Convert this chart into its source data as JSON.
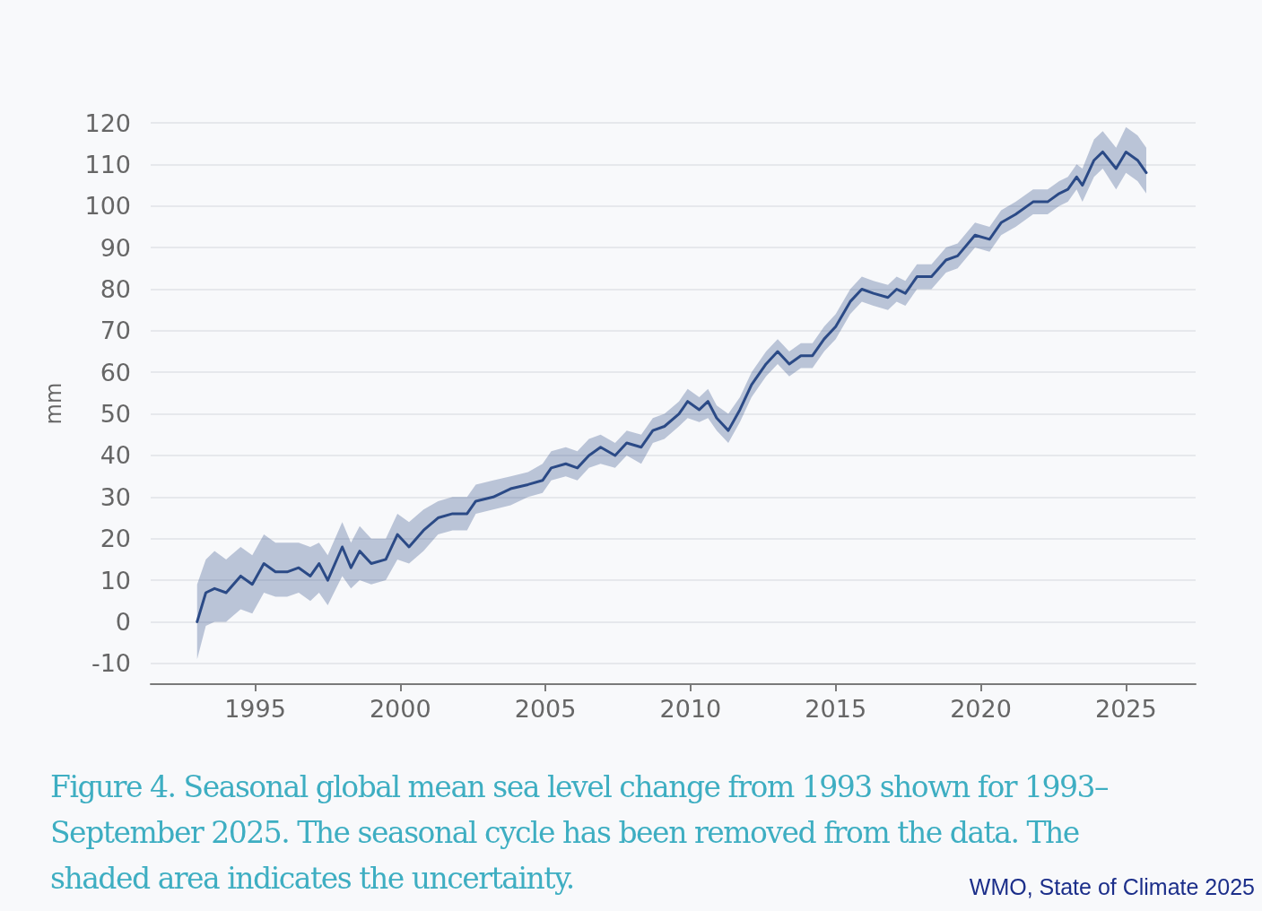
{
  "chart_data": {
    "type": "line",
    "ylabel": "mm",
    "annotations": [
      "Figure 4. Seasonal global mean sea level change from 1993 shown for 1993–September 2025. The seasonal cycle has been removed from the data. The shaded area indicates the uncertainty.",
      "WMO, State of Climate 2025"
    ],
    "x": [
      1993.0,
      1993.3,
      1993.6,
      1994.0,
      1994.5,
      1994.9,
      1995.3,
      1995.7,
      1996.1,
      1996.5,
      1996.9,
      1997.2,
      1997.5,
      1998.0,
      1998.3,
      1998.6,
      1999.0,
      1999.5,
      1999.9,
      2000.3,
      2000.8,
      2001.3,
      2001.8,
      2002.3,
      2002.6,
      2003.2,
      2003.8,
      2004.4,
      2004.9,
      2005.2,
      2005.7,
      2006.1,
      2006.5,
      2006.9,
      2007.4,
      2007.8,
      2008.3,
      2008.7,
      2009.1,
      2009.6,
      2009.9,
      2010.3,
      2010.6,
      2010.9,
      2011.3,
      2011.7,
      2012.1,
      2012.6,
      2013.0,
      2013.4,
      2013.8,
      2014.2,
      2014.6,
      2015.0,
      2015.5,
      2015.9,
      2016.3,
      2016.8,
      2017.1,
      2017.4,
      2017.8,
      2018.3,
      2018.8,
      2019.2,
      2019.8,
      2020.3,
      2020.7,
      2021.2,
      2021.8,
      2022.3,
      2022.7,
      2023.0,
      2023.3,
      2023.5,
      2023.9,
      2024.2,
      2024.66,
      2025.0,
      2025.4,
      2025.7
    ],
    "series": [
      {
        "color": "#2b4a86",
        "values": [
          0,
          7,
          8,
          7,
          11,
          9,
          14,
          12,
          12,
          13,
          11,
          14,
          10,
          18,
          13,
          17,
          14,
          15,
          21,
          18,
          22,
          25,
          26,
          26,
          29,
          30,
          32,
          33,
          34,
          37,
          38,
          37,
          40,
          42,
          40,
          43,
          42,
          46,
          47,
          50,
          53,
          51,
          53,
          49,
          46,
          51,
          57,
          62,
          65,
          62,
          64,
          64,
          68,
          71,
          77,
          80,
          79,
          78,
          80,
          79,
          83,
          83,
          87,
          88,
          93,
          92,
          96,
          98,
          101,
          101,
          103,
          104,
          107,
          105,
          111,
          113,
          109,
          113,
          111,
          108
        ],
        "lower": [
          -9,
          -1,
          0,
          0,
          3,
          2,
          7,
          6,
          6,
          7,
          5,
          7,
          4,
          11,
          8,
          10,
          9,
          10,
          15,
          14,
          17,
          21,
          22,
          22,
          26,
          27,
          28,
          30,
          31,
          34,
          35,
          34,
          37,
          38,
          37,
          40,
          38,
          43,
          44,
          47,
          49,
          48,
          49,
          46,
          43,
          48,
          54,
          59,
          62,
          59,
          61,
          61,
          65,
          68,
          74,
          77,
          76,
          75,
          77,
          76,
          80,
          80,
          84,
          85,
          90,
          89,
          93,
          95,
          98,
          98,
          100,
          101,
          104,
          101,
          107,
          109,
          104,
          108,
          106,
          103
        ],
        "upper": [
          9,
          15,
          17,
          15,
          18,
          16,
          21,
          19,
          19,
          19,
          18,
          19,
          16,
          24,
          19,
          23,
          20,
          20,
          26,
          24,
          27,
          29,
          30,
          30,
          33,
          34,
          35,
          36,
          38,
          41,
          42,
          41,
          44,
          45,
          43,
          46,
          45,
          49,
          50,
          53,
          56,
          54,
          56,
          52,
          50,
          54,
          60,
          65,
          68,
          65,
          67,
          67,
          71,
          74,
          80,
          83,
          82,
          81,
          83,
          82,
          86,
          86,
          90,
          91,
          96,
          95,
          99,
          101,
          104,
          104,
          106,
          107,
          110,
          109,
          116,
          118,
          114,
          119,
          117,
          114
        ]
      }
    ],
    "xlim": [
      1991.4,
      2027.4
    ],
    "xticks": [
      1995,
      2000,
      2005,
      2010,
      2015,
      2020,
      2025
    ],
    "ylim": [
      -15,
      120
    ],
    "yticks": [
      -10,
      0,
      10,
      20,
      30,
      40,
      50,
      60,
      70,
      80,
      90,
      100,
      110,
      120
    ],
    "grid": "y",
    "marker": "none",
    "line_style": "solid"
  }
}
